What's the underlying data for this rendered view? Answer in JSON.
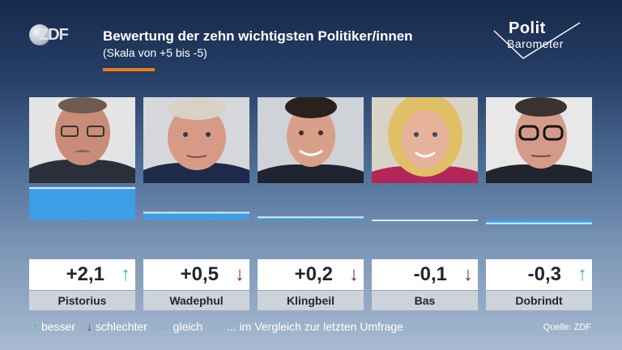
{
  "header": {
    "logo_text": "ZDF",
    "title": "Bewertung der zehn wichtigsten Politiker/innen",
    "subtitle": "(Skala von +5 bis -5)",
    "brand_line1": "Polit",
    "brand_line2": "Barometer"
  },
  "colors": {
    "accent": "#f07b1d",
    "bar": "#3e9fe6",
    "up": "#2bbfae",
    "down": "#8c1a4a",
    "same": "#9aa3ad"
  },
  "chart_data": {
    "type": "bar",
    "categories": [
      "Pistorius",
      "Wadephul",
      "Klingbeil",
      "Bas",
      "Dobrindt"
    ],
    "values": [
      2.1,
      0.5,
      0.2,
      -0.1,
      -0.3
    ],
    "labels": [
      "+2,1",
      "+0,5",
      "+0,2",
      "-0,1",
      "-0,3"
    ],
    "trend": [
      "up",
      "down",
      "down",
      "down",
      "up"
    ],
    "ylim": [
      -5,
      5
    ]
  },
  "legend": {
    "better_arrow": "↑",
    "better": "besser",
    "worse_arrow": "↓",
    "worse": "schlechter",
    "same_arrow": "→",
    "same": "gleich",
    "note": "... im Vergleich zur letzten Umfrage"
  },
  "source": "Quelle: ZDF"
}
